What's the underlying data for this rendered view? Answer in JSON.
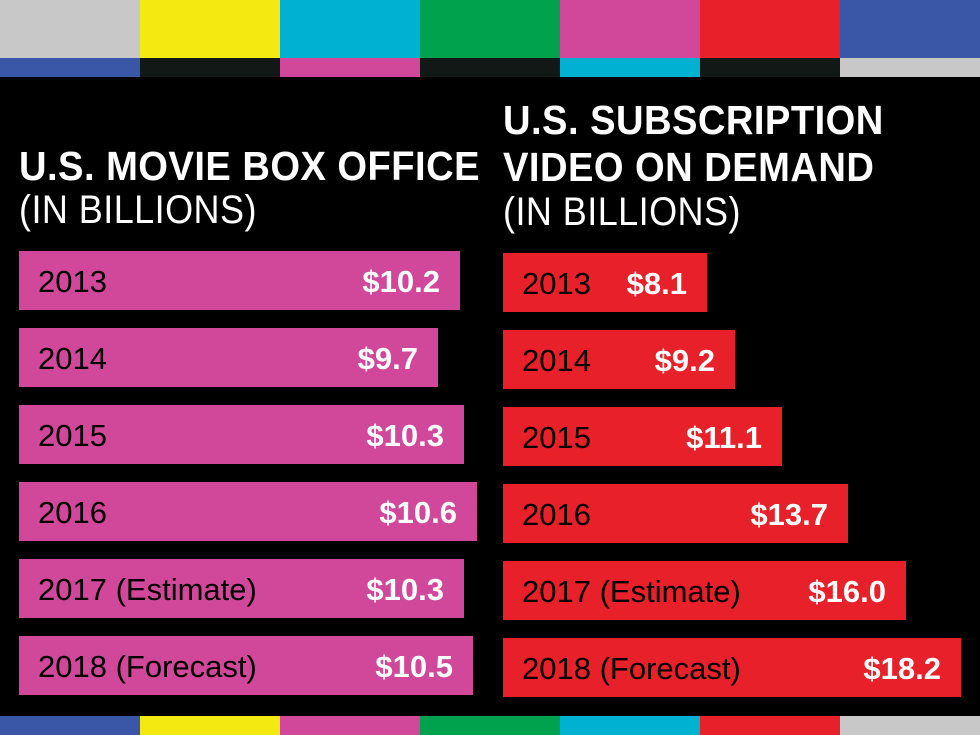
{
  "left_title": "U.S. MOVIE BOX OFFICE",
  "left_subtitle": "(IN BILLIONS)",
  "right_title_line1": "U.S. SUBSCRIPTION",
  "right_title_line2": "VIDEO ON DEMAND",
  "right_subtitle": "(IN BILLIONS)",
  "colors": {
    "background": "#000000",
    "box_office_bar": "#d1489a",
    "svod_bar": "#e8202a",
    "top_strip": [
      "#c8c8c8",
      "#f4e911",
      "#00b1d2",
      "#00a24e",
      "#d1489a",
      "#e8202a",
      "#3a57a7"
    ],
    "sub_strip": [
      "#3a57a7",
      "#111816",
      "#d1489a",
      "#111816",
      "#00b1d2",
      "#111816",
      "#c8c8c8"
    ],
    "bottom_strip": [
      "#3a57a7",
      "#f4e911",
      "#d1489a",
      "#00a24e",
      "#00b1d2",
      "#e8202a",
      "#c8c8c8"
    ]
  },
  "chart_data": [
    {
      "type": "bar",
      "orientation": "horizontal",
      "title": "U.S. MOVIE BOX OFFICE",
      "subtitle": "(IN BILLIONS)",
      "categories": [
        "2013",
        "2014",
        "2015",
        "2016",
        "2017 (Estimate)",
        "2018 (Forecast)"
      ],
      "values": [
        10.2,
        9.7,
        10.3,
        10.6,
        10.3,
        10.5
      ],
      "value_labels": [
        "$10.2",
        "$9.7",
        "$10.3",
        "$10.6",
        "$10.3",
        "$10.5"
      ],
      "unit": "billions USD",
      "xlim": [
        0,
        10.6
      ]
    },
    {
      "type": "bar",
      "orientation": "horizontal",
      "title": "U.S. SUBSCRIPTION VIDEO ON DEMAND",
      "subtitle": "(IN BILLIONS)",
      "categories": [
        "2013",
        "2014",
        "2015",
        "2016",
        "2017 (Estimate)",
        "2018 (Forecast)"
      ],
      "values": [
        8.1,
        9.2,
        11.1,
        13.7,
        16.0,
        18.2
      ],
      "value_labels": [
        "$8.1",
        "$9.2",
        "$11.1",
        "$13.7",
        "$16.0",
        "$18.2"
      ],
      "unit": "billions USD",
      "xlim": [
        0,
        18.2
      ]
    }
  ]
}
